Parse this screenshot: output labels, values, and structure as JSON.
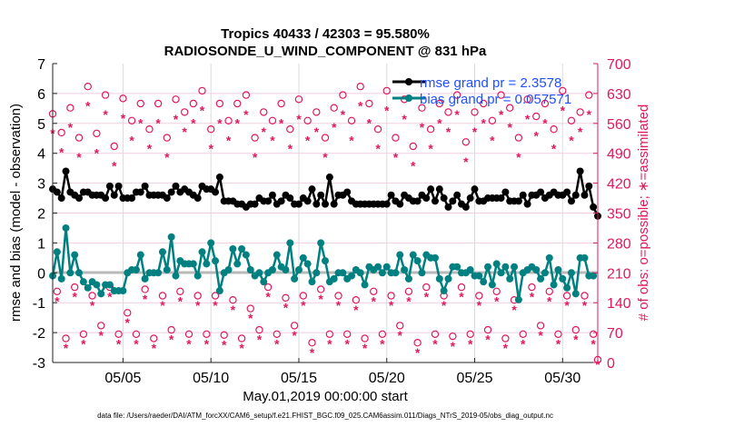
{
  "chart_data": {
    "type": "line",
    "title": [
      "Tropics 40433 / 42303 = 95.580%",
      "RADIOSONDE_U_WIND_COMPONENT @ 831 hPa"
    ],
    "xlabel": "May.01,2019 00:00:00 start",
    "ylabel": "rmse and bias (model - observation)",
    "ylabel_right": "# of obs: o=possible; ∗=assimilated",
    "footnote": "data file: /Users/raeder/DAI/ATM_forcXX/CAM6_setup/f.e21.FHIST_BGC.f09_025.CAM6assim.011/Diags_NTrS_2019-05/obs_diag_output.nc",
    "x_units": "days since May.01,2019 00:00",
    "x_step_days": 0.25,
    "xlim": [
      0,
      31
    ],
    "ylim": [
      -3,
      7
    ],
    "ylim_right": [
      0,
      700
    ],
    "xticks": [
      {
        "value": 4,
        "label": "05/05"
      },
      {
        "value": 9,
        "label": "05/10"
      },
      {
        "value": 14,
        "label": "05/15"
      },
      {
        "value": 19,
        "label": "05/20"
      },
      {
        "value": 24,
        "label": "05/25"
      },
      {
        "value": 29,
        "label": "05/30"
      }
    ],
    "yticks": [
      "-3",
      "-2",
      "-1",
      "0",
      "1",
      "2",
      "3",
      "4",
      "5",
      "6",
      "7"
    ],
    "yticks_right": [
      "0",
      "70",
      "140",
      "210",
      "280",
      "350",
      "420",
      "490",
      "560",
      "630",
      "700"
    ],
    "grid": true,
    "legend": {
      "position": "top-right",
      "entries": [
        "rmse grand pr = 2.3578",
        "bias grand pr = 0.057571"
      ]
    },
    "colors": {
      "rmse": "#000000",
      "bias": "#008080",
      "obs": "#e0185e",
      "legend_text": "#1f4fff",
      "zero_line": "#b8b8b8"
    },
    "series": [
      {
        "name": "rmse",
        "values": [
          2.8,
          2.7,
          2.5,
          3.4,
          2.7,
          2.6,
          2.5,
          2.7,
          2.7,
          2.6,
          2.6,
          2.6,
          2.5,
          2.9,
          2.6,
          2.9,
          2.5,
          2.5,
          2.5,
          2.7,
          2.7,
          2.9,
          2.6,
          2.6,
          2.6,
          2.6,
          2.5,
          2.7,
          2.9,
          2.7,
          2.8,
          2.7,
          2.6,
          2.5,
          2.9,
          2.8,
          2.8,
          2.7,
          3.2,
          2.4,
          2.4,
          2.4,
          2.3,
          2.3,
          2.2,
          2.3,
          2.3,
          2.5,
          2.4,
          2.4,
          2.6,
          2.3,
          2.4,
          2.6,
          2.5,
          2.3,
          2.3,
          2.5,
          2.4,
          2.8,
          2.3,
          2.6,
          2.3,
          3.2,
          2.3,
          2.6,
          2.6,
          2.7,
          2.4,
          2.3,
          2.3,
          2.3,
          2.3,
          2.3,
          2.3,
          2.3,
          2.3,
          2.6,
          2.4,
          2.3,
          2.6,
          2.5,
          2.4,
          2.4,
          2.6,
          2.5,
          2.8,
          2.4,
          2.8,
          2.5,
          2.2,
          2.4,
          2.6,
          2.3,
          2.2,
          2.5,
          2.8,
          2.4,
          2.4,
          2.5,
          2.5,
          2.5,
          2.5,
          2.7,
          2.4,
          2.4,
          2.4,
          2.6,
          2.3,
          2.6,
          2.6,
          2.7,
          2.5,
          2.6,
          2.7,
          2.6,
          2.6,
          2.7,
          2.4,
          2.6,
          3.4,
          2.6,
          2.9,
          2.2,
          1.9
        ]
      },
      {
        "name": "bias",
        "values": [
          -0.1,
          0.7,
          -0.2,
          1.5,
          0.0,
          0.6,
          0.0,
          -0.3,
          -0.5,
          -0.3,
          -0.4,
          -0.7,
          -0.4,
          -0.4,
          -0.6,
          -0.6,
          -0.6,
          0.0,
          0.1,
          0.1,
          0.6,
          -0.2,
          0.0,
          0.0,
          0.0,
          0.7,
          0.1,
          1.2,
          -0.1,
          0.4,
          0.3,
          0.3,
          0.3,
          -0.1,
          0.7,
          0.3,
          1.0,
          0.4,
          -0.6,
          0.0,
          0.1,
          0.8,
          0.3,
          0.8,
          0.6,
          0.1,
          -0.1,
          0.0,
          -0.3,
          0.0,
          0.1,
          0.6,
          0.2,
          0.1,
          1.0,
          -0.2,
          0.1,
          0.5,
          0.3,
          -0.3,
          0.0,
          1.0,
          0.4,
          -0.3,
          -0.2,
          0.0,
          0.0,
          -0.2,
          -0.1,
          0.1,
          0.0,
          -0.4,
          0.2,
          0.1,
          0.2,
          0.0,
          0.2,
          0.0,
          0.0,
          0.6,
          0.1,
          -0.2,
          0.6,
          0.4,
          0.0,
          0.6,
          0.5,
          0.5,
          -0.2,
          -0.6,
          -0.2,
          0.2,
          0.2,
          0.0,
          0.0,
          0.1,
          -0.1,
          -0.1,
          -0.3,
          0.2,
          -0.4,
          0.3,
          0.0,
          0.2,
          -0.2,
          0.2,
          -0.9,
          0.0,
          0.1,
          0.2,
          0.1,
          -0.2,
          0.0,
          0.5,
          -0.4,
          0.1,
          -0.2,
          -0.5,
          0.0,
          -0.7,
          0.5,
          0.5,
          -0.1,
          -0.1
        ]
      },
      {
        "name": "possible",
        "axis": "right",
        "values": [
          576,
          160,
          532,
          50,
          590,
          170,
          520,
          60,
          640,
          150,
          530,
          80,
          620,
          170,
          500,
          60,
          612,
          110,
          560,
          60,
          600,
          165,
          540,
          50,
          600,
          150,
          520,
          70,
          610,
          160,
          580,
          60,
          600,
          150,
          630,
          60,
          540,
          150,
          600,
          58,
          560,
          140,
          600,
          50,
          620,
          120,
          520,
          70,
          580,
          170,
          560,
          60,
          600,
          145,
          540,
          80,
          610,
          150,
          560,
          40,
          580,
          165,
          520,
          60,
          590,
          150,
          620,
          60,
          560,
          140,
          640,
          50,
          600,
          160,
          540,
          60,
          630,
          150,
          520,
          80,
          610,
          160,
          500,
          40,
          590,
          170,
          540,
          60,
          600,
          150,
          580,
          55,
          620,
          170,
          510,
          60,
          580,
          150,
          600,
          70,
          560,
          160,
          620,
          50,
          590,
          140,
          520,
          60,
          610,
          170,
          570,
          80,
          600,
          160,
          540,
          60,
          630,
          150,
          560,
          70,
          580,
          150,
          620,
          60,
          0
        ]
      },
      {
        "name": "assimilated",
        "axis": "right",
        "values": [
          541,
          148,
          497,
          38,
          555,
          158,
          485,
          48,
          605,
          138,
          495,
          68,
          585,
          158,
          465,
          48,
          577,
          98,
          525,
          48,
          565,
          153,
          505,
          38,
          565,
          138,
          485,
          58,
          575,
          148,
          545,
          48,
          565,
          138,
          595,
          48,
          505,
          138,
          565,
          46,
          525,
          128,
          565,
          38,
          585,
          108,
          485,
          58,
          545,
          158,
          525,
          48,
          565,
          133,
          505,
          68,
          575,
          138,
          525,
          28,
          545,
          153,
          485,
          48,
          555,
          138,
          585,
          48,
          525,
          128,
          605,
          38,
          565,
          148,
          505,
          48,
          595,
          138,
          485,
          68,
          575,
          148,
          465,
          28,
          555,
          158,
          505,
          48,
          565,
          138,
          545,
          43,
          585,
          158,
          475,
          48,
          545,
          138,
          565,
          58,
          525,
          148,
          585,
          38,
          555,
          128,
          485,
          48,
          575,
          158,
          535,
          68,
          565,
          148,
          505,
          48,
          595,
          138,
          525,
          58,
          545,
          138,
          585,
          48,
          0
        ]
      }
    ]
  }
}
